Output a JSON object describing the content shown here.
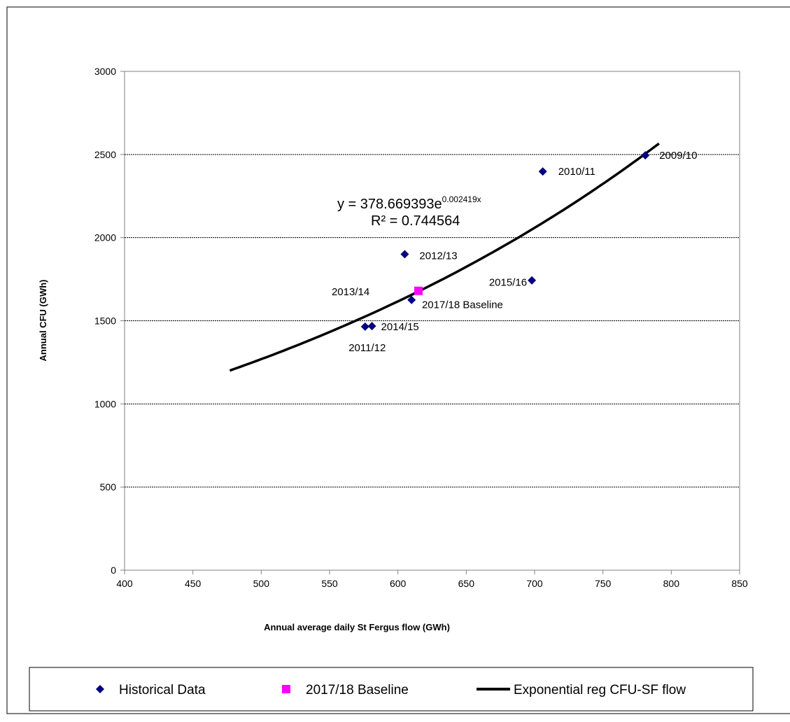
{
  "chart_data": {
    "type": "scatter",
    "xlabel": "Annual average daily St Fergus flow (GWh)",
    "ylabel": "Annual CFU (GWh)",
    "xlim": [
      400,
      850
    ],
    "ylim": [
      0,
      3000
    ],
    "x_ticks": [
      "400",
      "450",
      "500",
      "550",
      "600",
      "650",
      "700",
      "750",
      "800",
      "850"
    ],
    "y_ticks": [
      "0",
      "500",
      "1000",
      "1500",
      "2000",
      "2500",
      "3000"
    ],
    "grid": "horizontal",
    "series": [
      {
        "name": "Historical Data",
        "marker": "diamond",
        "color": "#000080",
        "points": [
          {
            "label": "2009/10",
            "x": 781,
            "y": 2495
          },
          {
            "label": "2010/11",
            "x": 706,
            "y": 2398
          },
          {
            "label": "2011/12",
            "x": 576,
            "y": 1465
          },
          {
            "label": "2012/13",
            "x": 605,
            "y": 1900
          },
          {
            "label": "2013/14",
            "x": 610,
            "y": 1625
          },
          {
            "label": "2014/15",
            "x": 581,
            "y": 1468
          },
          {
            "label": "2015/16",
            "x": 698,
            "y": 1743
          }
        ]
      },
      {
        "name": "2017/18 Baseline",
        "marker": "square",
        "color": "#ff00ff",
        "points": [
          {
            "label": "2017/18 Baseline",
            "x": 615,
            "y": 1680
          }
        ]
      },
      {
        "name": "Exponential reg CFU-SF flow",
        "type": "line",
        "color": "#000000",
        "equation": {
          "a": 378.669393,
          "b": 0.002419
        },
        "x_range": [
          477,
          791
        ]
      }
    ],
    "equation_text": {
      "prefix": "y = 378.669393e",
      "exponent": "0.002419x",
      "r2": "R² = 0.744564"
    },
    "legend": {
      "position": "bottom",
      "items": [
        "Historical Data",
        "2017/18 Baseline",
        "Exponential reg CFU-SF flow"
      ]
    }
  }
}
